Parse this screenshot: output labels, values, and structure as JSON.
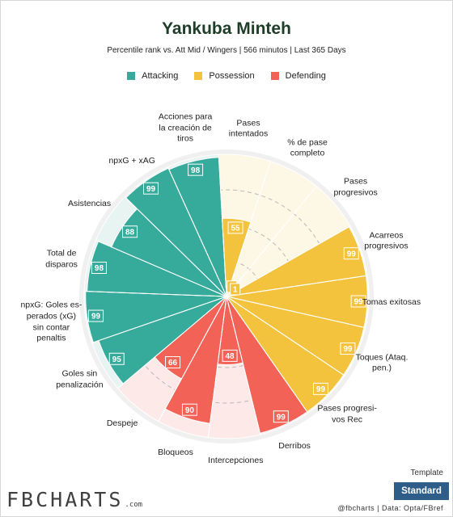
{
  "header": {
    "title": "Yankuba Minteh",
    "subtitle": "Percentile rank vs. Att Mid / Wingers | 566 minutos | Last 365 Days"
  },
  "legend": [
    {
      "label": "Attacking",
      "color": "#37ab9b"
    },
    {
      "label": "Possession",
      "color": "#f3c33e"
    },
    {
      "label": "Defending",
      "color": "#f26257"
    }
  ],
  "chart_data": {
    "type": "polar-bar",
    "rmax": 100,
    "metrics": [
      {
        "label": "Acciones para\nla creación de\ntiros",
        "value": 98,
        "category": "Attacking"
      },
      {
        "label": "Pases\nintentados",
        "value": 55,
        "category": "Possession"
      },
      {
        "label": "% de pase\ncompleto",
        "value": 5,
        "category": "Possession"
      },
      {
        "label": "Pases\nprogresivos",
        "value": 1,
        "category": "Possession"
      },
      {
        "label": "Acarreos\nprogresivos",
        "value": 99,
        "category": "Possession"
      },
      {
        "label": "Tomas exitosas",
        "value": 99,
        "category": "Possession"
      },
      {
        "label": "Toques (Ataq.\npen.)",
        "value": 99,
        "category": "Possession"
      },
      {
        "label": "Pases progresi-\nvos Rec",
        "value": 99,
        "category": "Possession"
      },
      {
        "label": "Derribos",
        "value": 99,
        "category": "Defending"
      },
      {
        "label": "Intercepciones",
        "value": 48,
        "category": "Defending"
      },
      {
        "label": "Bloqueos",
        "value": 90,
        "category": "Defending"
      },
      {
        "label": "Despeje",
        "value": 66,
        "category": "Defending"
      },
      {
        "label": "Goles sin\npenalización",
        "value": 95,
        "category": "Attacking"
      },
      {
        "label": "npxG: Goles es-\nperados (xG)\nsin contar\npenaltis",
        "value": 99,
        "category": "Attacking"
      },
      {
        "label": "Total de\ndisparos",
        "value": 98,
        "category": "Attacking"
      },
      {
        "label": "Asistencias",
        "value": 88,
        "category": "Attacking"
      },
      {
        "label": "npxG + xAG",
        "value": 99,
        "category": "Attacking"
      }
    ]
  },
  "footer": {
    "logo_text": "FBCHARTS",
    "logo_suffix": ".com",
    "template_label": "Template",
    "standard_button": "Standard",
    "credits": "@fbcharts | Data: Opta/FBref"
  }
}
